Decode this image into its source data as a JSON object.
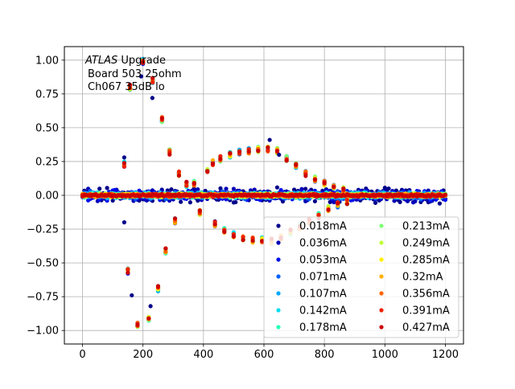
{
  "chart_data": {
    "type": "scatter",
    "title": "",
    "xlabel": "",
    "ylabel": "",
    "xlim": [
      -60,
      1260
    ],
    "ylim": [
      -1.1,
      1.1
    ],
    "grid": true,
    "legend_placement": "bottom-right",
    "legend_columns": 2,
    "annotation": {
      "line1_italic": "ATLAS",
      "line1_rest": " Upgrade",
      "line2": "Board 503 25ohm",
      "line3": "Ch067 35dB lo"
    },
    "x_ticks": [
      0,
      200,
      400,
      600,
      800,
      1000,
      1200
    ],
    "x_tick_labels": [
      "0",
      "200",
      "400",
      "600",
      "800",
      "1000",
      "1200"
    ],
    "y_ticks": [
      1.0,
      0.75,
      0.5,
      0.25,
      0.0,
      -0.25,
      -0.5,
      -0.75,
      -1.0
    ],
    "y_tick_labels": [
      "1.00",
      "0.75",
      "0.50",
      "0.25",
      "0.00",
      "−0.25",
      "−0.50",
      "−0.75",
      "−1.00"
    ],
    "sample_step": 6.25,
    "n_samples": 193,
    "noise_amplitudes": [
      0.045,
      0.035,
      0.028,
      0.022,
      0.018,
      0.016,
      0.014,
      0.012,
      0.011,
      0.01,
      0.009,
      0.008,
      0.008,
      0.007
    ],
    "pulse_points": [
      {
        "x": 138,
        "y": 0.23
      },
      {
        "x": 150,
        "y": -0.56
      },
      {
        "x": 157,
        "y": 0.8
      },
      {
        "x": 182,
        "y": -0.96
      },
      {
        "x": 200,
        "y": 0.99
      },
      {
        "x": 219,
        "y": -0.92
      },
      {
        "x": 232,
        "y": 0.85
      },
      {
        "x": 250,
        "y": -0.69
      },
      {
        "x": 263,
        "y": 0.56
      },
      {
        "x": 275,
        "y": -0.41
      },
      {
        "x": 288,
        "y": 0.32
      },
      {
        "x": 306,
        "y": -0.19
      },
      {
        "x": 319,
        "y": 0.16
      },
      {
        "x": 344,
        "y": 0.08
      },
      {
        "x": 369,
        "y": 0.09
      },
      {
        "x": 388,
        "y": -0.13
      },
      {
        "x": 413,
        "y": 0.19
      },
      {
        "x": 431,
        "y": 0.24
      },
      {
        "x": 438,
        "y": -0.21
      },
      {
        "x": 456,
        "y": 0.27
      },
      {
        "x": 469,
        "y": -0.26
      },
      {
        "x": 488,
        "y": 0.3
      },
      {
        "x": 500,
        "y": -0.29
      },
      {
        "x": 519,
        "y": 0.32
      },
      {
        "x": 531,
        "y": -0.32
      },
      {
        "x": 550,
        "y": 0.33
      },
      {
        "x": 563,
        "y": -0.33
      },
      {
        "x": 581,
        "y": 0.34
      },
      {
        "x": 594,
        "y": -0.33
      },
      {
        "x": 613,
        "y": 0.34
      },
      {
        "x": 625,
        "y": -0.34
      },
      {
        "x": 644,
        "y": 0.33
      },
      {
        "x": 656,
        "y": -0.31
      },
      {
        "x": 675,
        "y": 0.27
      },
      {
        "x": 688,
        "y": -0.27
      },
      {
        "x": 706,
        "y": 0.22
      },
      {
        "x": 719,
        "y": -0.23
      },
      {
        "x": 738,
        "y": 0.16
      },
      {
        "x": 750,
        "y": -0.19
      },
      {
        "x": 769,
        "y": 0.12
      },
      {
        "x": 781,
        "y": -0.15
      },
      {
        "x": 800,
        "y": 0.09
      },
      {
        "x": 813,
        "y": -0.1
      },
      {
        "x": 831,
        "y": 0.06
      },
      {
        "x": 844,
        "y": -0.07
      },
      {
        "x": 863,
        "y": 0.04
      },
      {
        "x": 875,
        "y": -0.05
      }
    ],
    "outliers": [
      {
        "x": 138,
        "y": -0.2
      },
      {
        "x": 138,
        "y": 0.28
      },
      {
        "x": 163,
        "y": -0.74
      },
      {
        "x": 194,
        "y": 0.88
      },
      {
        "x": 225,
        "y": -0.82
      },
      {
        "x": 231,
        "y": 0.72
      },
      {
        "x": 619,
        "y": 0.41
      },
      {
        "x": 650,
        "y": 0.3
      }
    ],
    "series": [
      {
        "name": "0.018mA",
        "color": "#00008b"
      },
      {
        "name": "0.036mA",
        "color": "#0000b8"
      },
      {
        "name": "0.053mA",
        "color": "#0010ee"
      },
      {
        "name": "0.071mA",
        "color": "#0060ff"
      },
      {
        "name": "0.107mA",
        "color": "#00a8ff"
      },
      {
        "name": "0.142mA",
        "color": "#00dcef"
      },
      {
        "name": "0.178mA",
        "color": "#27ffb8"
      },
      {
        "name": "0.213mA",
        "color": "#80ff78"
      },
      {
        "name": "0.249mA",
        "color": "#c0ff38"
      },
      {
        "name": "0.285mA",
        "color": "#fff000"
      },
      {
        "name": "0.32mA",
        "color": "#ffb000"
      },
      {
        "name": "0.356mA",
        "color": "#ff6400"
      },
      {
        "name": "0.391mA",
        "color": "#ee2200"
      },
      {
        "name": "0.427mA",
        "color": "#cc0000"
      }
    ]
  }
}
